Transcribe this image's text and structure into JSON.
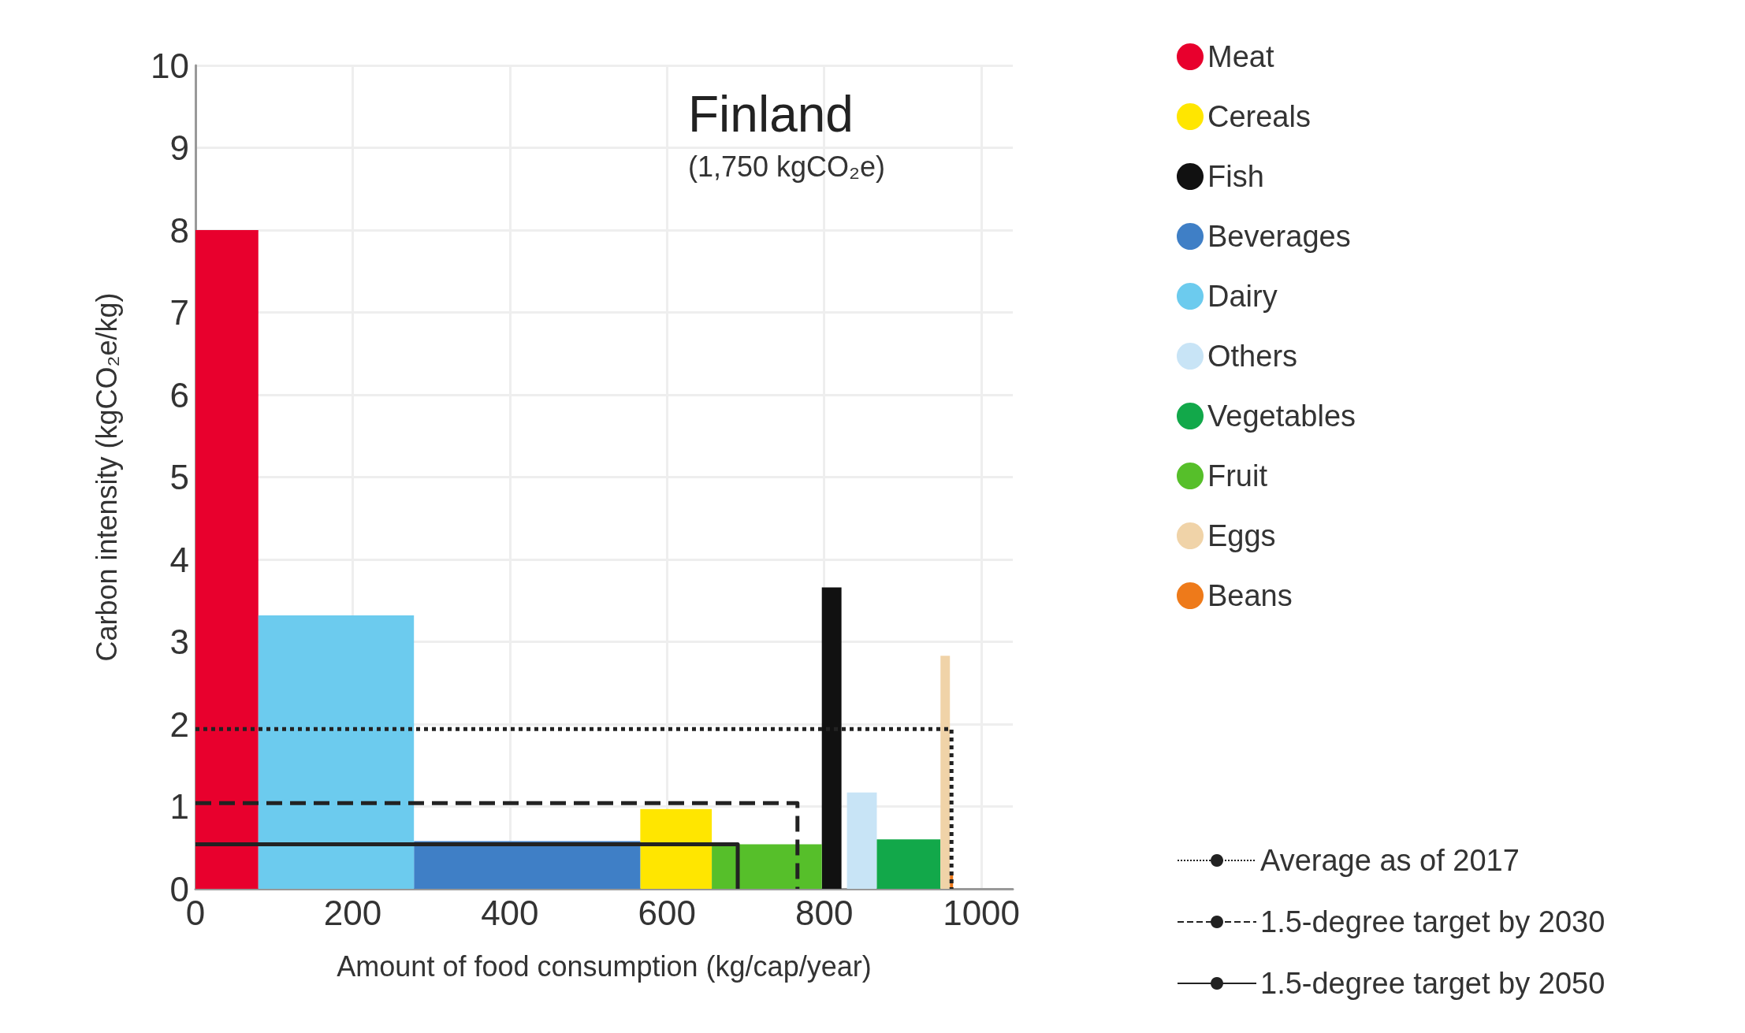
{
  "chart_data": {
    "type": "area",
    "title": "Finland",
    "subtitle": "(1,750 kgCO₂e)",
    "xlabel": "Amount of food consumption (kg/cap/year)",
    "ylabel": "Carbon intensity (kgCO₂e/kg)",
    "xlim": [
      0,
      1040
    ],
    "xticks": [
      0,
      200,
      400,
      600,
      800,
      1000
    ],
    "ylim": [
      0,
      10
    ],
    "yticks": [
      0,
      1,
      2,
      3,
      4,
      5,
      6,
      7,
      8,
      9,
      10
    ],
    "grid": true,
    "legend": "right",
    "series": [
      {
        "name": "Meat",
        "color": "#e8002d",
        "x": [
          0,
          80
        ],
        "values": [
          8.0,
          8.0
        ]
      },
      {
        "name": "Cereals",
        "color": "#ffe600",
        "x": [
          566,
          657
        ],
        "values": [
          0.97,
          0.97
        ]
      },
      {
        "name": "Fish",
        "color": "#111111",
        "x": [
          797,
          822
        ],
        "values": [
          3.66,
          3.66
        ]
      },
      {
        "name": "Beverages",
        "color": "#3f7fc6",
        "x": [
          278,
          566
        ],
        "values": [
          0.58,
          0.58
        ]
      },
      {
        "name": "Dairy",
        "color": "#6ccbee",
        "x": [
          80,
          278
        ],
        "values": [
          3.32,
          3.32
        ]
      },
      {
        "name": "Others",
        "color": "#c8e4f6",
        "x": [
          829,
          867
        ],
        "values": [
          1.17,
          1.17
        ]
      },
      {
        "name": "Vegetables",
        "color": "#12a84a",
        "x": [
          867,
          948
        ],
        "values": [
          0.6,
          0.6
        ]
      },
      {
        "name": "Fruit",
        "color": "#56bf2a",
        "x": [
          657,
          797
        ],
        "values": [
          0.54,
          0.54
        ]
      },
      {
        "name": "Eggs",
        "color": "#f0d3a8",
        "x": [
          948,
          960
        ],
        "values": [
          2.83,
          2.83
        ]
      },
      {
        "name": "Beans",
        "color": "#ee7a1a",
        "x": [
          960,
          964
        ],
        "values": [
          0.2,
          0.2
        ]
      },
      {
        "name": "Average as of 2017",
        "type": "line",
        "line_style": "dotted",
        "color": "#222222",
        "x": [
          0,
          962,
          962
        ],
        "values": [
          1.94,
          1.94,
          0
        ]
      },
      {
        "name": "1.5-degree target by 2030",
        "type": "line",
        "line_style": "dashed",
        "color": "#222222",
        "x": [
          0,
          766,
          766
        ],
        "values": [
          1.04,
          1.04,
          0
        ]
      },
      {
        "name": "1.5-degree target by 2050",
        "type": "line",
        "line_style": "solid",
        "color": "#222222",
        "x": [
          0,
          690,
          690
        ],
        "values": [
          0.54,
          0.54,
          0
        ]
      }
    ]
  }
}
